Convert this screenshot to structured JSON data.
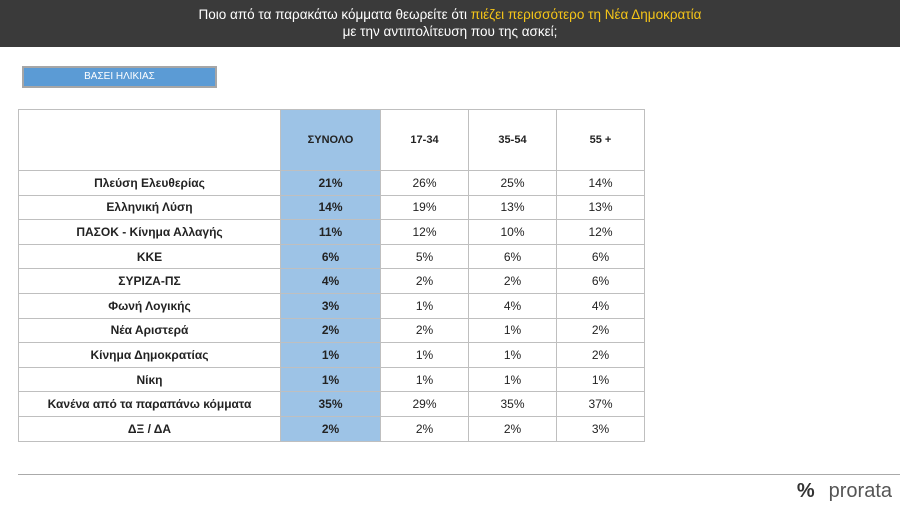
{
  "header": {
    "title_start": "Ποιο από τα παρακάτω κόμματα θεωρείτε ότι ",
    "title_highlight": "πιέζει περισσότερο τη Νέα Δημοκρατία",
    "title_line2": "με την αντιπολίτευση που της ασκεί;"
  },
  "button": "ΒΑΣΕΙ ΗΛΙΚΙΑΣ",
  "table": {
    "columns": [
      "ΣΥΝΟΛΟ",
      "17-34",
      "35-54",
      "55 +"
    ],
    "rows": [
      [
        "Πλεύση Ελευθερίας",
        "21%",
        "26%",
        "25%",
        "14%"
      ],
      [
        "Ελληνική Λύση",
        "14%",
        "19%",
        "13%",
        "13%"
      ],
      [
        "ΠΑΣΟΚ - Κίνημα Αλλαγής",
        "11%",
        "12%",
        "10%",
        "12%"
      ],
      [
        "ΚΚΕ",
        "6%",
        "5%",
        "6%",
        "6%"
      ],
      [
        "ΣΥΡΙΖΑ-ΠΣ",
        "4%",
        "2%",
        "2%",
        "6%"
      ],
      [
        "Φωνή Λογικής",
        "3%",
        "1%",
        "4%",
        "4%"
      ],
      [
        "Νέα Αριστερά",
        "2%",
        "2%",
        "1%",
        "2%"
      ],
      [
        "Κίνημα Δημοκρατίας",
        "1%",
        "1%",
        "1%",
        "2%"
      ],
      [
        "Νίκη",
        "1%",
        "1%",
        "1%",
        "1%"
      ],
      [
        "Κανένα από τα παραπάνω κόμματα",
        "35%",
        "29%",
        "35%",
        "37%"
      ],
      [
        "ΔΞ / ΔΑ",
        "2%",
        "2%",
        "2%",
        "3%"
      ]
    ]
  },
  "logo": {
    "symbol": "%",
    "text": "prorata"
  }
}
